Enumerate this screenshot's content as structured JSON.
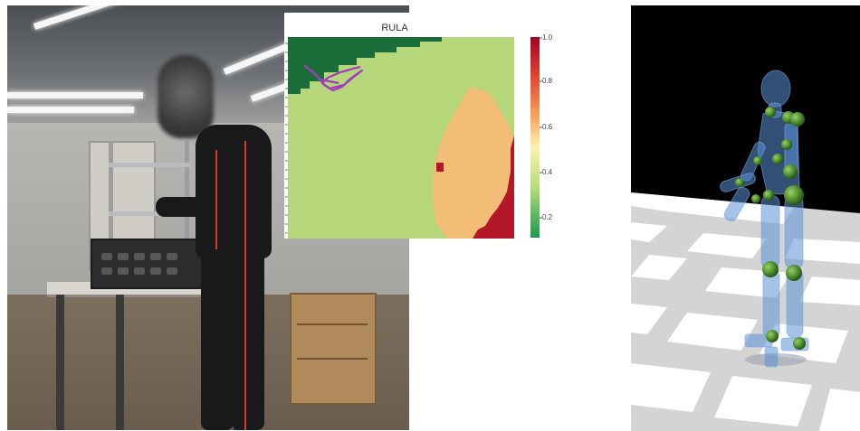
{
  "heatmap": {
    "title": "RULA",
    "colorbar_ticks": [
      "1.0",
      "0.8",
      "0.6",
      "0.4",
      "0.2"
    ],
    "colormap": [
      "#1a9850",
      "#a6d96a",
      "#fee08b",
      "#fdae61",
      "#d73027",
      "#a50026"
    ]
  },
  "colors": {
    "green_region": "#1b6e3a",
    "light_green_region": "#b5d779",
    "orange_region": "#f2bd76",
    "red_region": "#b5172a",
    "trajectory": "#a23bbd",
    "skeleton_body": "#5b8fd6",
    "skeleton_joint": "#4a8a2b"
  }
}
